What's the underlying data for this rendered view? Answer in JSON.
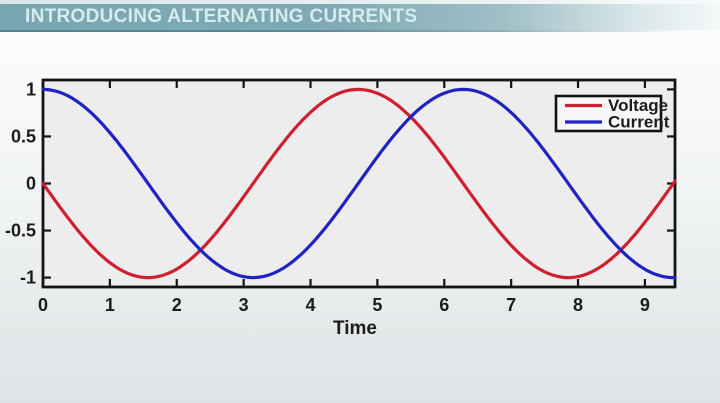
{
  "header": {
    "title": "INTRODUCING ALTERNATING CURRENTS"
  },
  "chart_data": {
    "type": "line",
    "title": "",
    "xlabel": "Time",
    "ylabel": "",
    "xlim": [
      0,
      9.45
    ],
    "ylim": [
      -1.1,
      1.1
    ],
    "x_ticks": [
      0,
      1,
      2,
      3,
      4,
      5,
      6,
      7,
      8,
      9
    ],
    "y_ticks": [
      -1,
      -0.5,
      0,
      0.5,
      1
    ],
    "grid": false,
    "legend": {
      "position": "top-right",
      "entries": [
        "Voltage",
        "Current"
      ]
    },
    "series": [
      {
        "name": "Voltage",
        "color": "#d01f2f",
        "model": {
          "type": "sine",
          "amplitude": 1,
          "omega": 1,
          "phase_deg": 180,
          "formula": "v(t) = -sin(t)"
        },
        "sample_x": [
          0,
          0.79,
          1.57,
          2.36,
          3.14,
          3.93,
          4.71,
          5.5,
          6.28,
          7.07,
          7.85,
          8.64,
          9.42
        ],
        "sample_y": [
          0,
          -0.71,
          -1,
          -0.71,
          0,
          0.71,
          1,
          0.71,
          0,
          -0.71,
          -1,
          -0.71,
          0
        ]
      },
      {
        "name": "Current",
        "color": "#2023c4",
        "model": {
          "type": "sine",
          "amplitude": 1,
          "omega": 1,
          "phase_deg": 90,
          "formula": "i(t) = cos(t)"
        },
        "sample_x": [
          0,
          0.79,
          1.57,
          2.36,
          3.14,
          3.93,
          4.71,
          5.5,
          6.28,
          7.07,
          7.85,
          8.64,
          9.42
        ],
        "sample_y": [
          1,
          0.71,
          0,
          -0.71,
          -1,
          -0.71,
          0,
          0.71,
          1,
          0.71,
          0,
          -0.71,
          -1
        ]
      }
    ]
  },
  "colors": {
    "header_bar": "#7aa7b1",
    "header_text": "#d7ecef",
    "voltage": "#d01f2f",
    "current": "#2023c4",
    "plot_background": "#ededed",
    "axis": "#141414"
  }
}
